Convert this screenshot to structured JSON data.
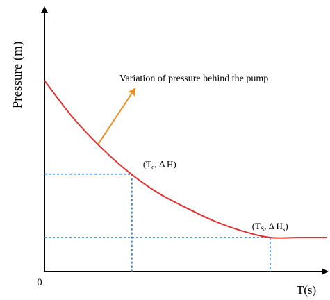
{
  "chart_data": {
    "type": "line",
    "title": "",
    "xlabel": "T(s)",
    "ylabel": "Pressure (m)",
    "origin_label": "0",
    "x_ticks": [],
    "y_ticks": [],
    "grid": false,
    "series": [
      {
        "values": [
          {
            "x": 0.0,
            "y": 1.0
          },
          {
            "x": 0.1,
            "y": 0.78
          },
          {
            "x": 0.2,
            "y": 0.6
          },
          {
            "x": 0.3,
            "y": 0.45
          },
          {
            "x": 0.4,
            "y": 0.33
          },
          {
            "x": 0.5,
            "y": 0.24
          },
          {
            "x": 0.6,
            "y": 0.16
          },
          {
            "x": 0.7,
            "y": 0.1
          },
          {
            "x": 0.8,
            "y": 0.06
          },
          {
            "x": 0.9,
            "y": 0.06
          },
          {
            "x": 1.0,
            "y": 0.06
          }
        ],
        "color": "#e03030"
      }
    ],
    "reference_points": [
      {
        "name": "td",
        "x": 0.31,
        "y": 0.44,
        "label_main": "(T",
        "label_sub": "d",
        "label_rest": ", Δ H)",
        "guide_color": "#1e78d2"
      },
      {
        "name": "ts",
        "x": 0.8,
        "y": 0.06,
        "label_main": "(T",
        "label_sub": "S",
        "label_rest": ", Δ H",
        "label_sub2": "s",
        "label_end": ")",
        "guide_color": "#1e78d2"
      }
    ],
    "annotation": {
      "text": "Variation  of pressure behind the pump",
      "color": "#e8901e",
      "at_x": 0.19
    },
    "axis_color": "#000000"
  }
}
